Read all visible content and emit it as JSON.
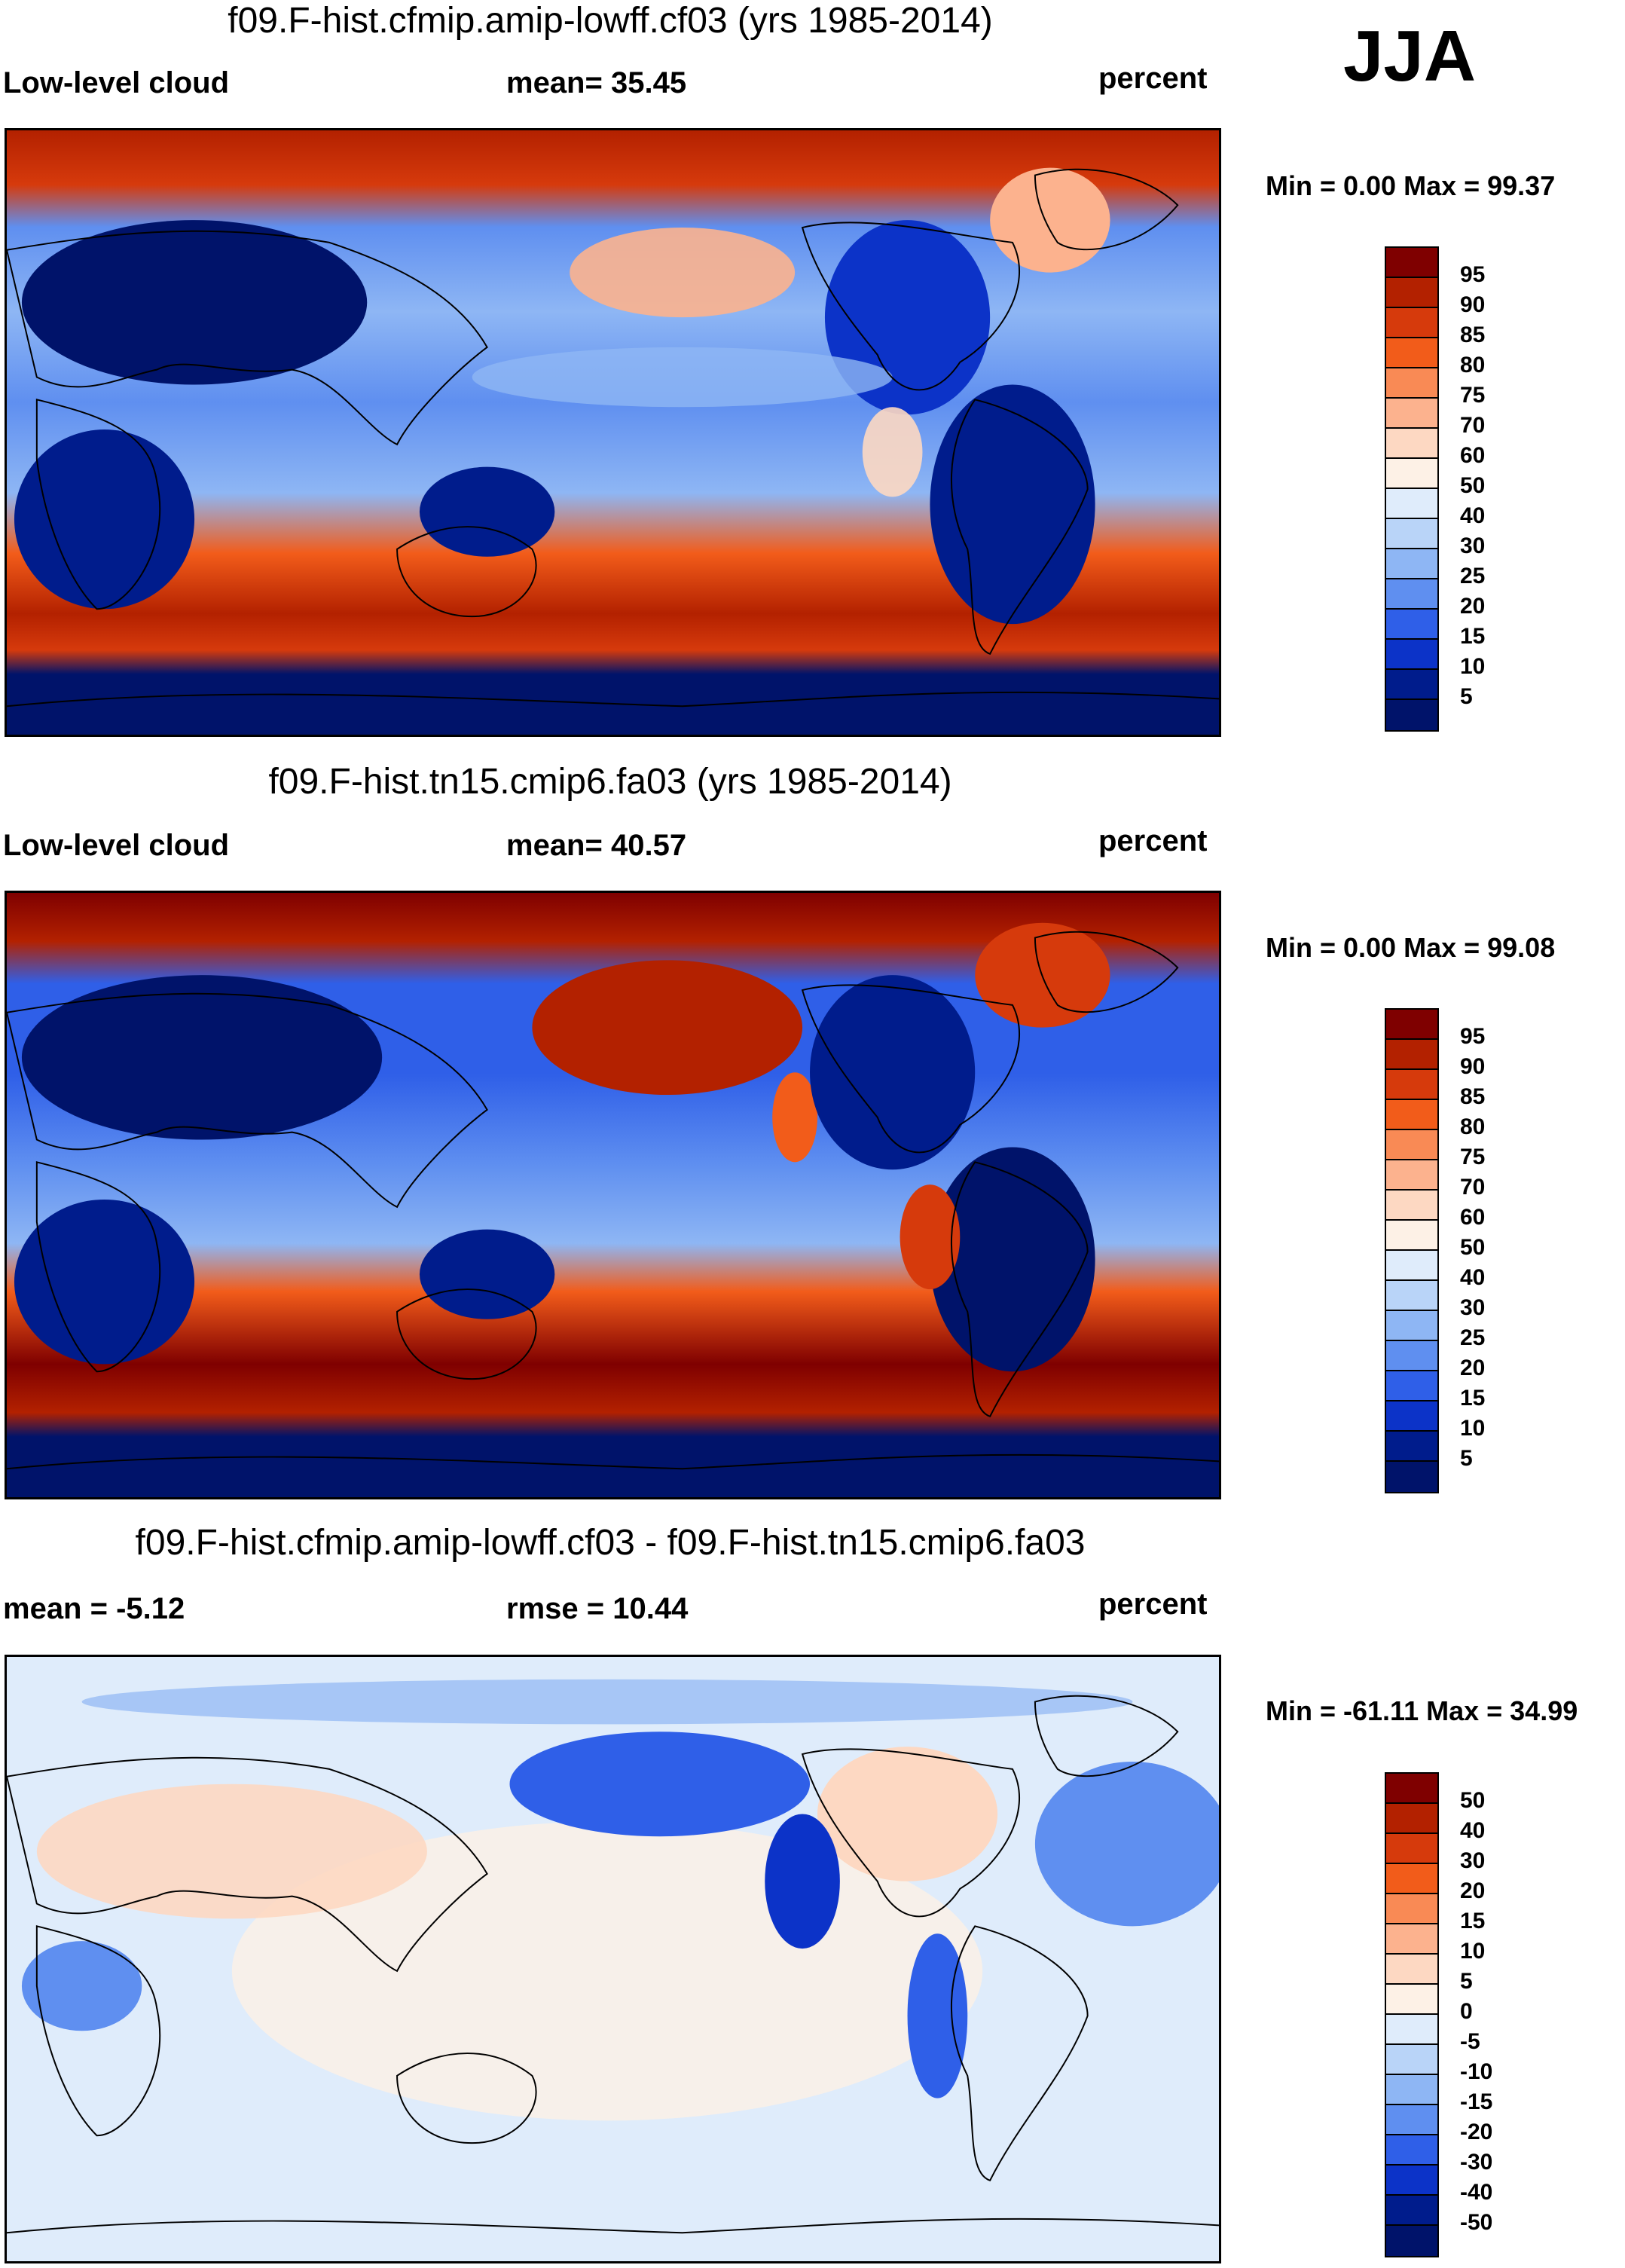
{
  "season": "JJA",
  "panels": [
    {
      "title": "f09.F-hist.cfmip.amip-lowff.cf03 (yrs 1985-2014)",
      "variable": "Low-level cloud",
      "stat": "mean=  35.45",
      "units": "percent",
      "minmax": "Min =   0.00 Max =  99.37",
      "colorbar": {
        "labels": [
          "95",
          "90",
          "85",
          "80",
          "75",
          "70",
          "60",
          "50",
          "40",
          "30",
          "25",
          "20",
          "15",
          "10",
          "5"
        ],
        "colors": [
          "#7f0000",
          "#b32100",
          "#d63a0c",
          "#f25c1a",
          "#f98a55",
          "#fcb28e",
          "#fdd8c2",
          "#fdf1e6",
          "#dfecfb",
          "#b9d4f8",
          "#8eb6f4",
          "#5f8ff0",
          "#2f5fe8",
          "#0c33c8",
          "#001c8c",
          "#00136a"
        ]
      }
    },
    {
      "title": "f09.F-hist.tn15.cmip6.fa03 (yrs 1985-2014)",
      "variable": "Low-level cloud",
      "stat": "mean=  40.57",
      "units": "percent",
      "minmax": "Min =   0.00 Max =  99.08",
      "colorbar": {
        "labels": [
          "95",
          "90",
          "85",
          "80",
          "75",
          "70",
          "60",
          "50",
          "40",
          "30",
          "25",
          "20",
          "15",
          "10",
          "5"
        ],
        "colors": [
          "#7f0000",
          "#b32100",
          "#d63a0c",
          "#f25c1a",
          "#f98a55",
          "#fcb28e",
          "#fdd8c2",
          "#fdf1e6",
          "#dfecfb",
          "#b9d4f8",
          "#8eb6f4",
          "#5f8ff0",
          "#2f5fe8",
          "#0c33c8",
          "#001c8c",
          "#00136a"
        ]
      }
    },
    {
      "title": "f09.F-hist.cfmip.amip-lowff.cf03 - f09.F-hist.tn15.cmip6.fa03",
      "variable": "mean =  -5.12",
      "stat": "rmse =  10.44",
      "units": "percent",
      "minmax": "Min = -61.11 Max =  34.99",
      "colorbar": {
        "labels": [
          "50",
          "40",
          "30",
          "20",
          "15",
          "10",
          "5",
          "0",
          "-5",
          "-10",
          "-15",
          "-20",
          "-30",
          "-40",
          "-50"
        ],
        "colors": [
          "#7f0000",
          "#b32100",
          "#d63a0c",
          "#f25c1a",
          "#f98a55",
          "#fcb28e",
          "#fdd8c2",
          "#fdf1e6",
          "#dfecfb",
          "#b9d4f8",
          "#8eb6f4",
          "#5f8ff0",
          "#2f5fe8",
          "#0c33c8",
          "#001c8c",
          "#00136a"
        ]
      }
    }
  ]
}
